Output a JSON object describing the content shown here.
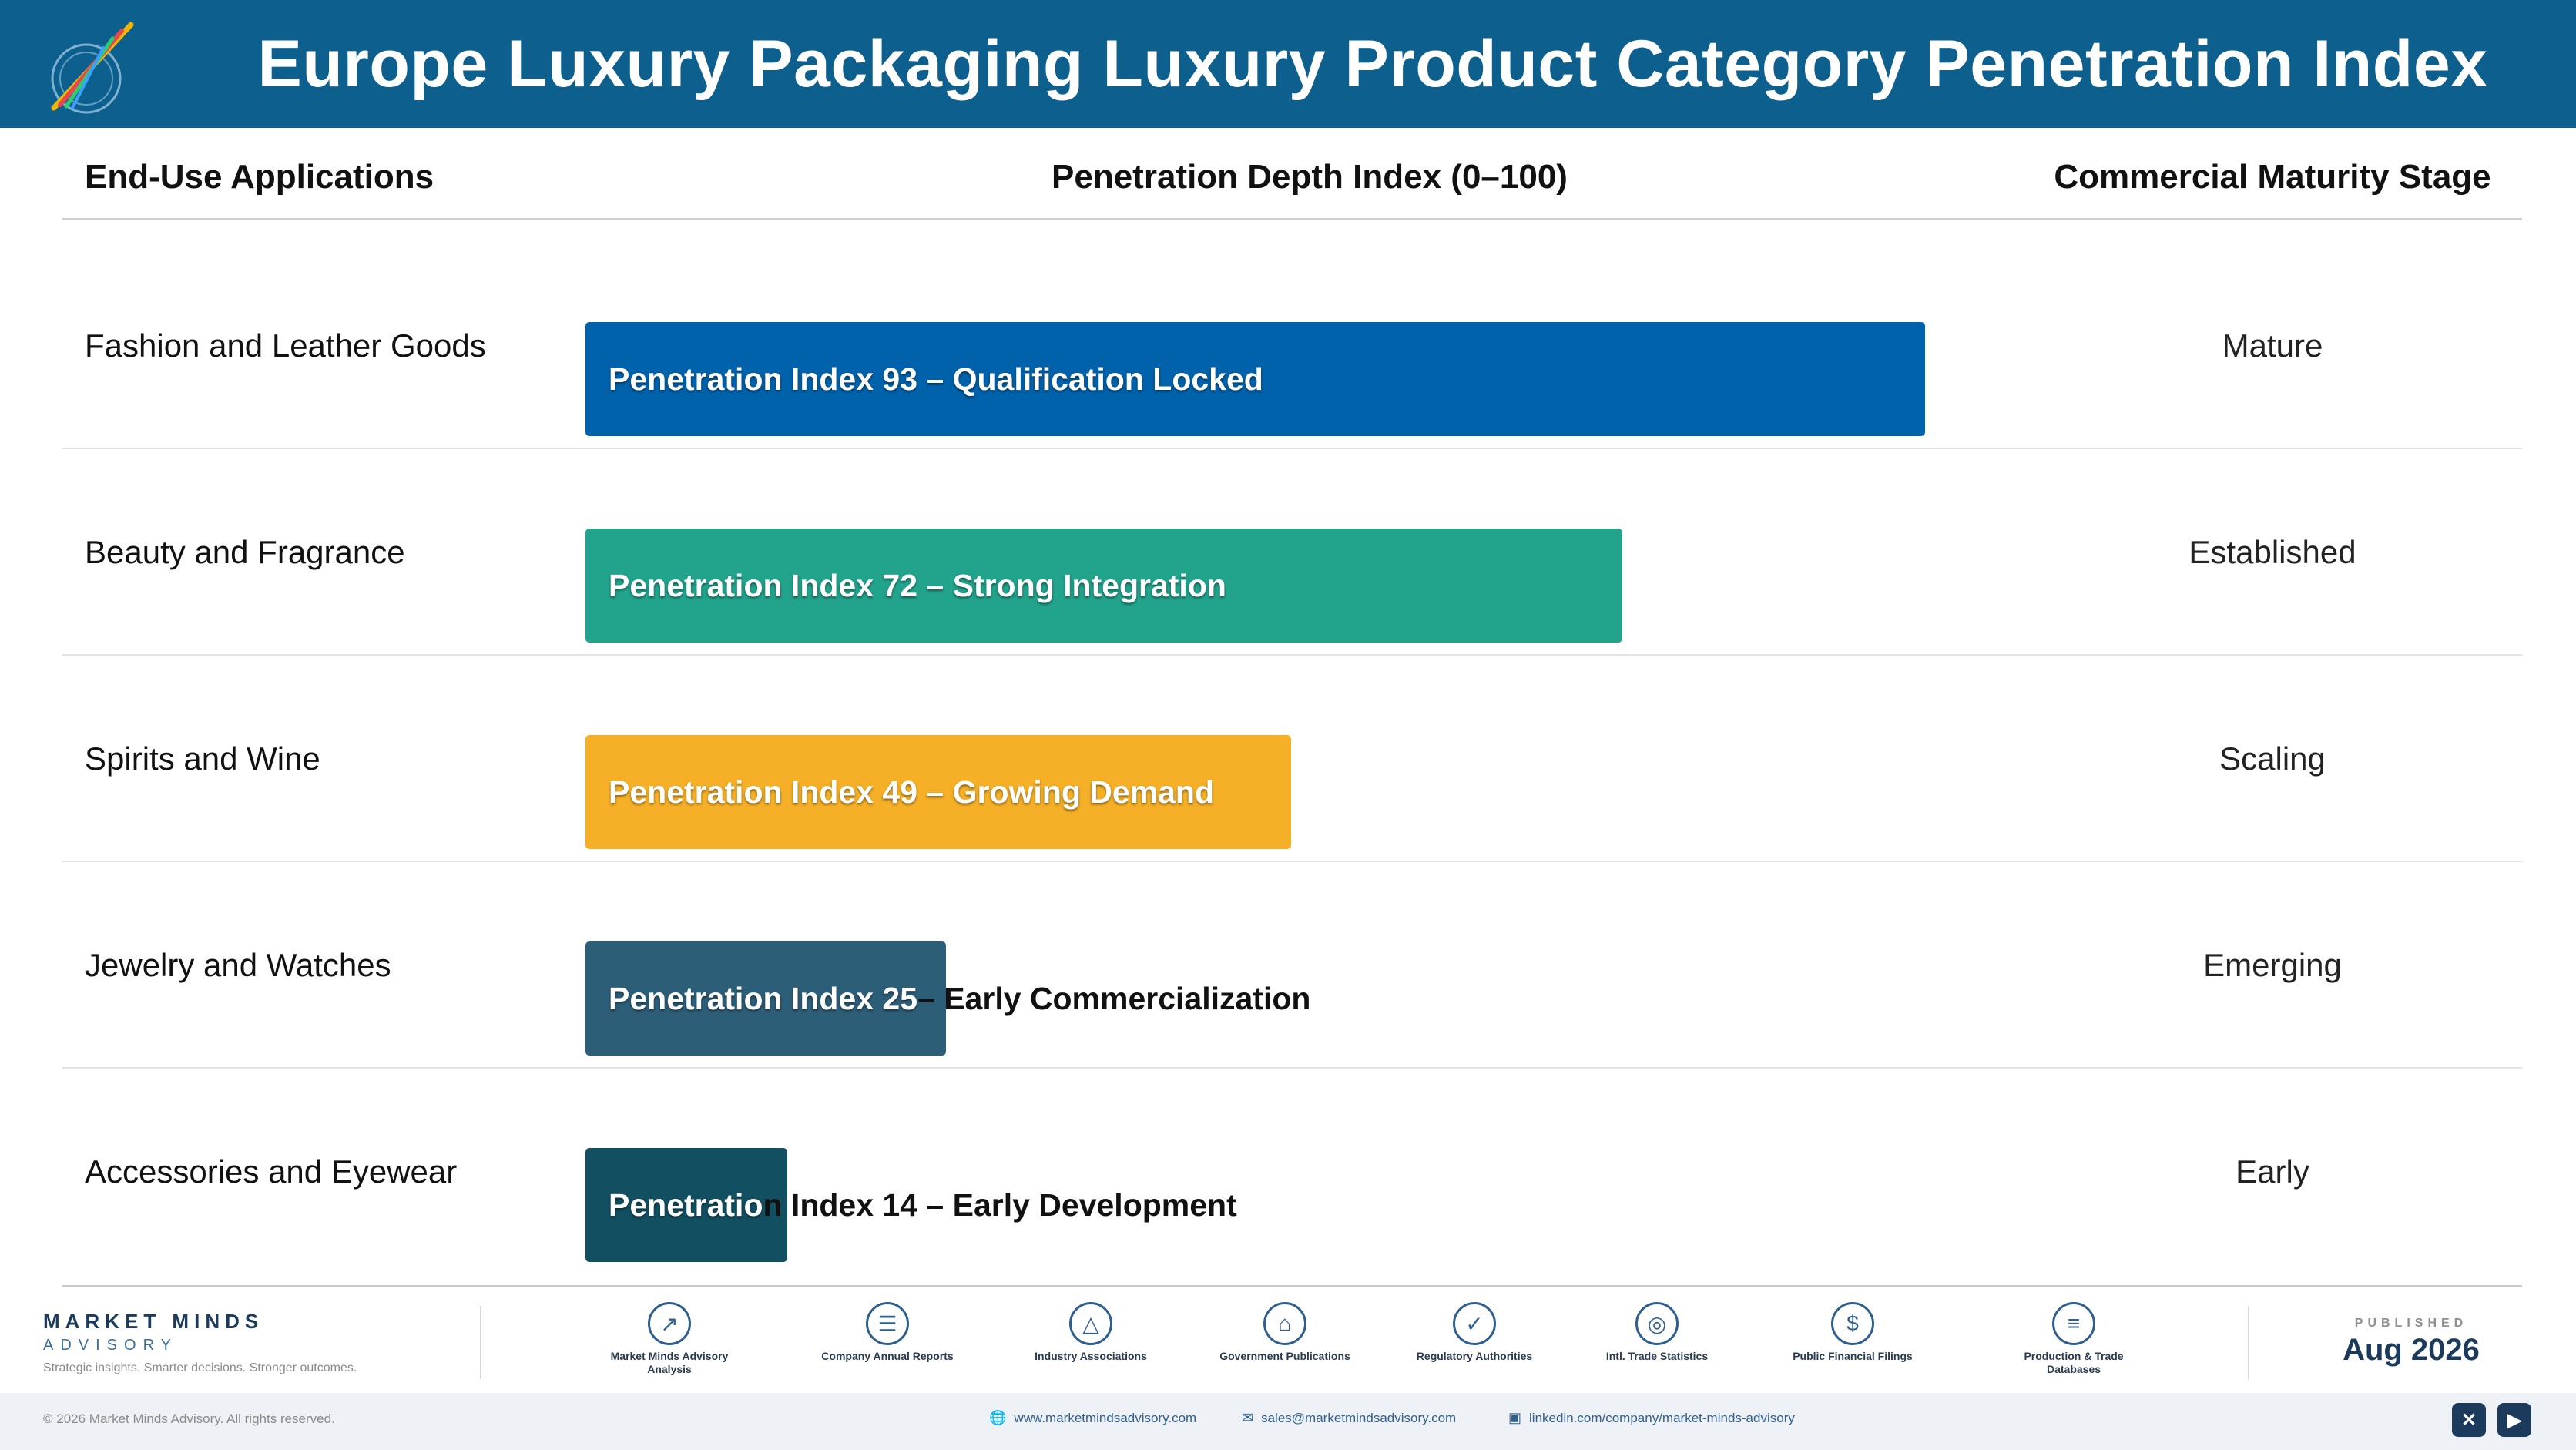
{
  "header": {
    "title": "Europe Luxury Packaging Luxury Product Category Penetration Index",
    "logo_icon": "market-minds-logo"
  },
  "columns": {
    "applications": "End-Use Applications",
    "index": "Penetration Depth Index (0–100)",
    "stage": "Commercial Maturity Stage"
  },
  "chart_data": {
    "type": "bar",
    "orientation": "horizontal",
    "title": "Europe Luxury Packaging Luxury Product Category Penetration Index",
    "xlabel": "Penetration Depth Index (0–100)",
    "xlim": [
      0,
      100
    ],
    "grid": false,
    "categories": [
      "Fashion and Leather Goods",
      "Beauty and Fragrance",
      "Spirits and Wine",
      "Jewelry and Watches",
      "Accessories and Eyewear"
    ],
    "values": [
      93,
      72,
      49,
      25,
      14
    ],
    "bar_labels": [
      "Penetration Index 93 – Qualification Locked",
      "Penetration Index 72 – Strong Integration",
      "Penetration Index 49 – Growing Demand",
      "Penetration Index 25 – Early Commercialization",
      "Penetration Index 14 – Early Development"
    ],
    "stages": [
      "Mature",
      "Established",
      "Scaling",
      "Emerging",
      "Early"
    ],
    "colors": [
      "#0062ab",
      "#22a38c",
      "#f5b027",
      "#2d5e78",
      "#124f61"
    ]
  },
  "footer": {
    "brand": "MARKET MINDS",
    "brand_sub": "ADVISORY",
    "tagline": "Strategic insights. Smarter decisions. Stronger outcomes.",
    "sources": [
      {
        "label": "Market Minds Advisory Analysis",
        "icon": "trend-chart-icon"
      },
      {
        "label": "Company Annual Reports",
        "icon": "document-icon"
      },
      {
        "label": "Industry Associations",
        "icon": "network-icon"
      },
      {
        "label": "Government Publications",
        "icon": "government-building-icon"
      },
      {
        "label": "Regulatory Authorities",
        "icon": "shield-icon"
      },
      {
        "label": "Intl. Trade Statistics",
        "icon": "globe-icon"
      },
      {
        "label": "Public Financial Filings",
        "icon": "dollar-icon"
      },
      {
        "label": "Production & Trade Databases",
        "icon": "database-icon"
      }
    ],
    "published_label": "PUBLISHED",
    "published_date": "Aug 2026",
    "copyright": "© 2026 Market Minds Advisory. All rights reserved.",
    "website": "www.marketmindsadvisory.com",
    "email": "sales@marketmindsadvisory.com",
    "linkedin": "linkedin.com/company/market-minds-advisory",
    "social": [
      "x-icon",
      "youtube-icon"
    ]
  }
}
